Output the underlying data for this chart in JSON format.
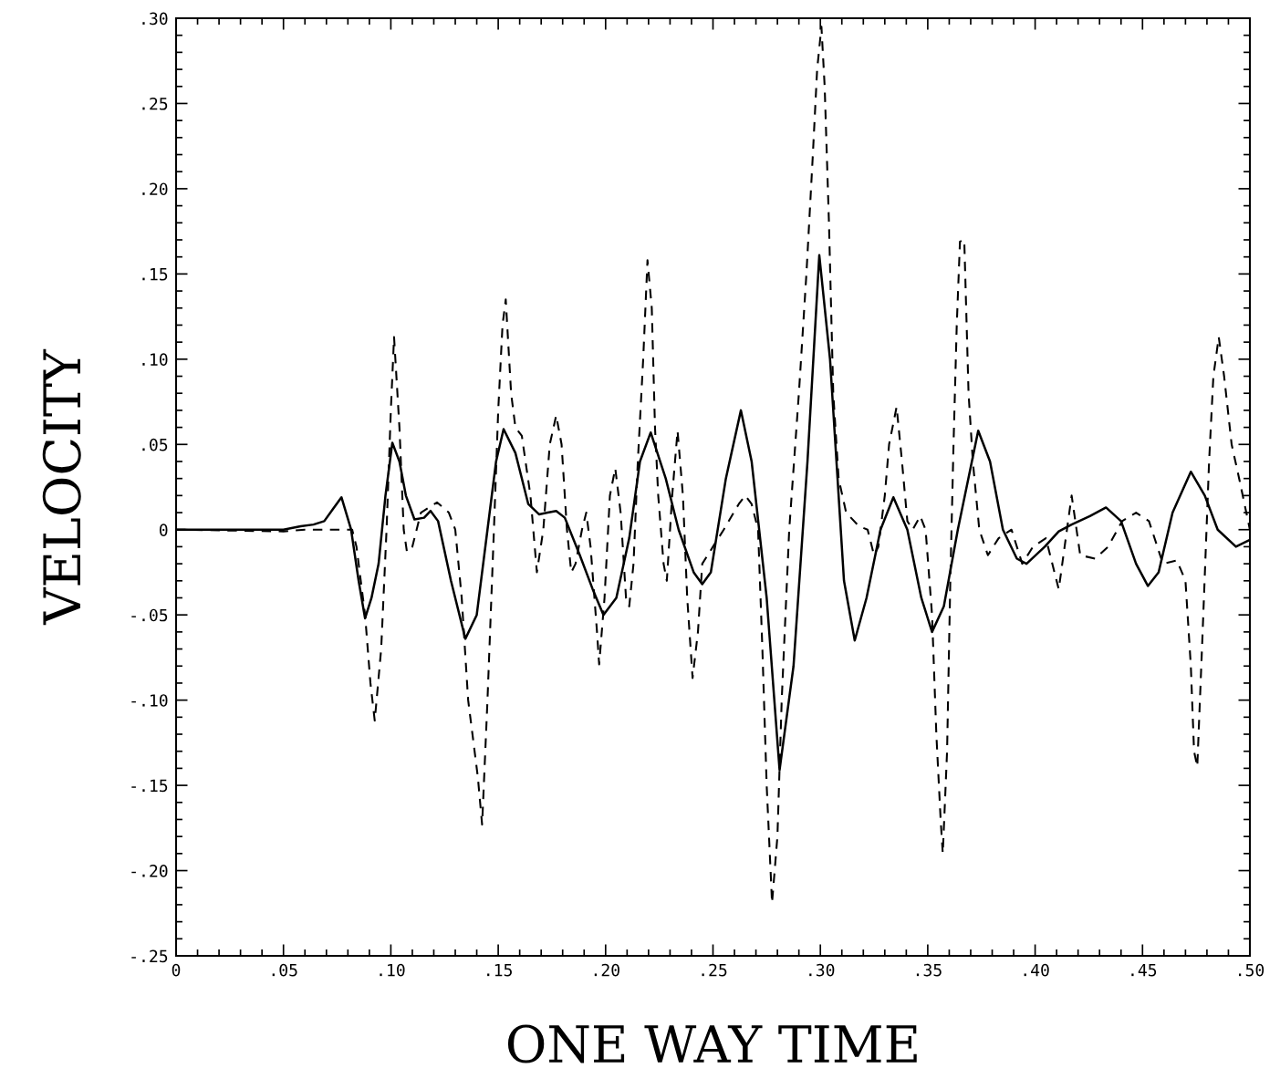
{
  "chart_data": {
    "type": "line",
    "xlabel": "ONE WAY TIME",
    "ylabel": "VELOCITY",
    "xlim": [
      0,
      0.5
    ],
    "ylim": [
      -0.25,
      0.3
    ],
    "xticks": [
      0,
      {
        "value": 0.05,
        "label": ".05"
      },
      {
        "value": 0.1,
        "label": ".10"
      },
      {
        "value": 0.15,
        "label": ".15"
      },
      {
        "value": 0.2,
        "label": ".20"
      },
      {
        "value": 0.25,
        "label": ".25"
      },
      {
        "value": 0.3,
        "label": ".30"
      },
      {
        "value": 0.35,
        "label": ".35"
      },
      {
        "value": 0.4,
        "label": ".40"
      },
      {
        "value": 0.45,
        "label": ".45"
      },
      {
        "value": 0.5,
        "label": ".50"
      }
    ],
    "yticks": [
      {
        "value": 0.3,
        "label": ".30"
      },
      {
        "value": 0.25,
        "label": ".25"
      },
      {
        "value": 0.2,
        "label": ".20"
      },
      {
        "value": 0.15,
        "label": ".15"
      },
      {
        "value": 0.1,
        "label": ".10"
      },
      {
        "value": 0.05,
        "label": ".05"
      },
      0,
      {
        "value": -0.05,
        "label": "-.05"
      },
      {
        "value": -0.1,
        "label": "-.10"
      },
      {
        "value": -0.15,
        "label": "-.15"
      },
      {
        "value": -0.2,
        "label": "-.20"
      },
      {
        "value": -0.25,
        "label": "-.25"
      }
    ],
    "grid": false,
    "legend": false,
    "marker": "none",
    "series": [
      {
        "color": "#000000",
        "line_style": "solid",
        "x": [
          0,
          0.05,
          0.058,
          0.064,
          0.069,
          0.073,
          0.077,
          0.0815,
          0.085,
          0.088,
          0.091,
          0.0943,
          0.0975,
          0.1007,
          0.104,
          0.107,
          0.111,
          0.1155,
          0.1185,
          0.122,
          0.128,
          0.1347,
          0.14,
          0.145,
          0.149,
          0.1525,
          0.158,
          0.164,
          0.169,
          0.173,
          0.177,
          0.181,
          0.188,
          0.194,
          0.199,
          0.205,
          0.211,
          0.216,
          0.221,
          0.228,
          0.234,
          0.241,
          0.245,
          0.249,
          0.256,
          0.263,
          0.268,
          0.275,
          0.281,
          0.2875,
          0.294,
          0.2995,
          0.3045,
          0.311,
          0.316,
          0.3215,
          0.328,
          0.334,
          0.3405,
          0.347,
          0.352,
          0.3575,
          0.364,
          0.3735,
          0.379,
          0.385,
          0.3915,
          0.396,
          0.4045,
          0.411,
          0.417,
          0.4255,
          0.433,
          0.44,
          0.447,
          0.4525,
          0.4575,
          0.464,
          0.4725,
          0.479,
          0.485,
          0.4935,
          0.5
        ],
        "values": [
          0,
          0,
          0.002,
          0.003,
          0.005,
          0.012,
          0.019,
          0.0,
          -0.03,
          -0.052,
          -0.04,
          -0.02,
          0.02,
          0.051,
          0.04,
          0.02,
          0.006,
          0.007,
          0.011,
          0.005,
          -0.03,
          -0.064,
          -0.05,
          0.0,
          0.04,
          0.059,
          0.045,
          0.015,
          0.009,
          0.01,
          0.011,
          0.007,
          -0.015,
          -0.035,
          -0.05,
          -0.04,
          -0.005,
          0.04,
          0.057,
          0.03,
          0.0,
          -0.025,
          -0.032,
          -0.025,
          0.03,
          0.07,
          0.04,
          -0.04,
          -0.141,
          -0.08,
          0.04,
          0.161,
          0.1,
          -0.03,
          -0.065,
          -0.04,
          0.0,
          0.019,
          0.0,
          -0.04,
          -0.06,
          -0.045,
          0.0,
          0.058,
          0.04,
          0.0,
          -0.017,
          -0.02,
          -0.01,
          -0.001,
          0.003,
          0.008,
          0.013,
          0.005,
          -0.02,
          -0.033,
          -0.025,
          0.01,
          0.034,
          0.02,
          0.0,
          -0.01,
          -0.006
        ]
      },
      {
        "color": "#000000",
        "line_style": "dashed",
        "x": [
          0,
          0.05,
          0.06,
          0.065,
          0.082,
          0.084,
          0.088,
          0.0905,
          0.0925,
          0.0955,
          0.098,
          0.1,
          0.1015,
          0.104,
          0.106,
          0.1075,
          0.11,
          0.114,
          0.1215,
          0.127,
          0.13,
          0.133,
          0.136,
          0.1405,
          0.1425,
          0.145,
          0.148,
          0.15,
          0.152,
          0.1535,
          0.156,
          0.158,
          0.161,
          0.165,
          0.168,
          0.171,
          0.174,
          0.177,
          0.1795,
          0.182,
          0.184,
          0.186,
          0.189,
          0.191,
          0.193,
          0.196,
          0.197,
          0.1995,
          0.202,
          0.2045,
          0.207,
          0.2095,
          0.211,
          0.213,
          0.215,
          0.2175,
          0.2195,
          0.2215,
          0.223,
          0.2245,
          0.227,
          0.2285,
          0.231,
          0.2335,
          0.236,
          0.238,
          0.2405,
          0.243,
          0.245,
          0.25,
          0.255,
          0.262,
          0.265,
          0.268,
          0.271,
          0.273,
          0.275,
          0.2775,
          0.28,
          0.282,
          0.2855,
          0.29,
          0.2935,
          0.2965,
          0.2985,
          0.3005,
          0.302,
          0.304,
          0.306,
          0.3085,
          0.312,
          0.318,
          0.322,
          0.325,
          0.327,
          0.33,
          0.332,
          0.3355,
          0.338,
          0.3405,
          0.343,
          0.3465,
          0.349,
          0.352,
          0.354,
          0.356,
          0.357,
          0.359,
          0.3605,
          0.362,
          0.3635,
          0.365,
          0.367,
          0.369,
          0.371,
          0.374,
          0.378,
          0.383,
          0.389,
          0.394,
          0.399,
          0.405,
          0.411,
          0.417,
          0.421,
          0.428,
          0.434,
          0.4405,
          0.447,
          0.453,
          0.4595,
          0.466,
          0.47,
          0.4725,
          0.474,
          0.4755,
          0.478,
          0.481,
          0.483,
          0.4855,
          0.488,
          0.4915,
          0.495,
          0.5
        ],
        "values": [
          0,
          -0.001,
          0.0,
          0.0,
          0.0,
          -0.01,
          -0.05,
          -0.09,
          -0.112,
          -0.07,
          0.0,
          0.07,
          0.113,
          0.06,
          0.0,
          -0.013,
          -0.01,
          0.01,
          0.016,
          0.01,
          0.0,
          -0.04,
          -0.1,
          -0.145,
          -0.173,
          -0.1,
          0.0,
          0.07,
          0.12,
          0.135,
          0.08,
          0.06,
          0.055,
          0.02,
          -0.025,
          0.0,
          0.05,
          0.067,
          0.05,
          0.0,
          -0.025,
          -0.02,
          0.0,
          0.01,
          -0.01,
          -0.06,
          -0.079,
          -0.04,
          0.02,
          0.036,
          0.01,
          -0.04,
          -0.045,
          -0.02,
          0.04,
          0.1,
          0.158,
          0.13,
          0.06,
          0.02,
          -0.02,
          -0.03,
          0.02,
          0.058,
          0.02,
          -0.04,
          -0.087,
          -0.06,
          -0.02,
          -0.01,
          0.0,
          0.015,
          0.02,
          0.015,
          0.0,
          -0.07,
          -0.15,
          -0.219,
          -0.18,
          -0.1,
          0.0,
          0.08,
          0.15,
          0.22,
          0.27,
          0.295,
          0.26,
          0.18,
          0.08,
          0.03,
          0.01,
          0.002,
          0.0,
          -0.015,
          -0.01,
          0.02,
          0.05,
          0.072,
          0.04,
          0.005,
          0.0,
          0.008,
          0.0,
          -0.05,
          -0.12,
          -0.17,
          -0.19,
          -0.13,
          -0.03,
          0.05,
          0.12,
          0.169,
          0.17,
          0.08,
          0.04,
          0.0,
          -0.015,
          -0.005,
          0.0,
          -0.02,
          -0.01,
          -0.005,
          -0.035,
          0.02,
          -0.015,
          -0.017,
          -0.01,
          0.005,
          0.01,
          0.005,
          -0.02,
          -0.018,
          -0.03,
          -0.08,
          -0.13,
          -0.139,
          -0.06,
          0.04,
          0.09,
          0.113,
          0.09,
          0.05,
          0.03,
          0.0
        ]
      }
    ]
  }
}
